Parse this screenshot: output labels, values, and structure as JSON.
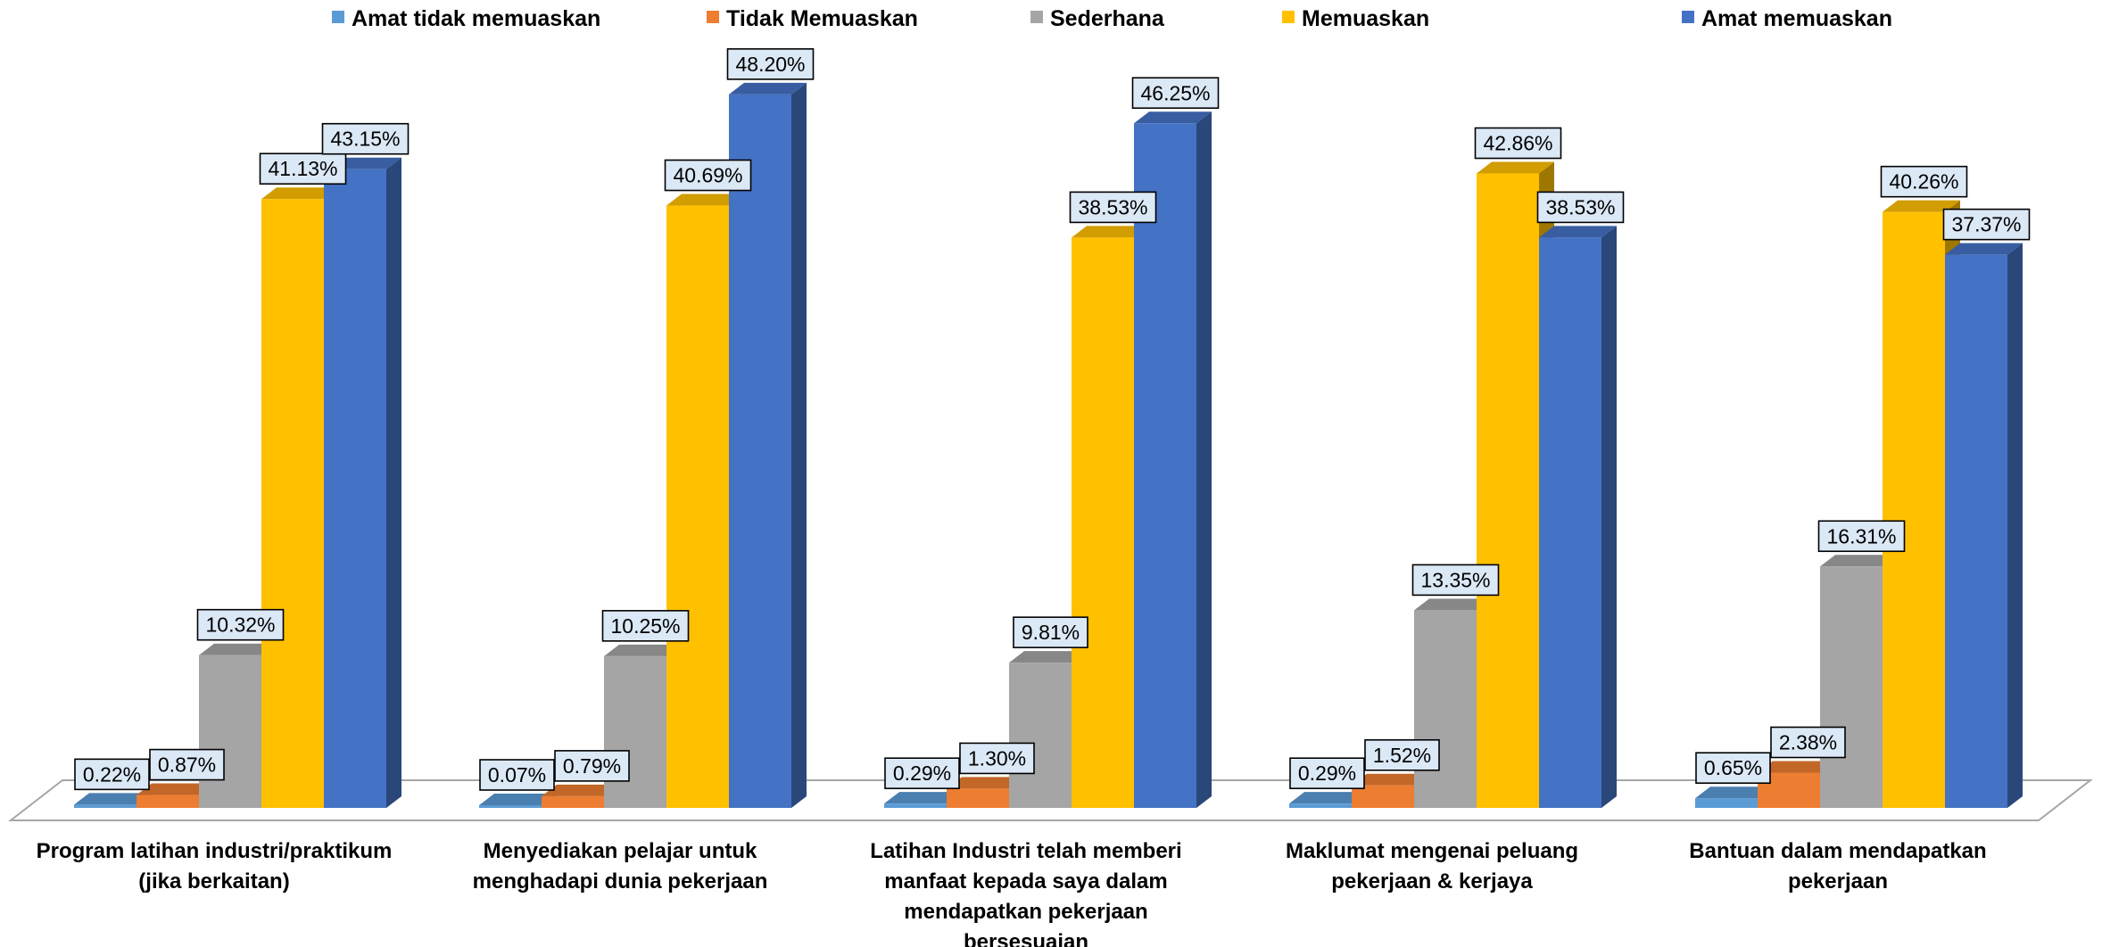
{
  "chart_data": {
    "type": "bar",
    "categories": [
      [
        "Program latihan industri/praktikum",
        "(jika berkaitan)"
      ],
      [
        "Menyediakan pelajar untuk",
        "menghadapi dunia pekerjaan"
      ],
      [
        "Latihan Industri telah memberi",
        "manfaat kepada saya dalam",
        "mendapatkan pekerjaan",
        "bersesuaian"
      ],
      [
        "Maklumat mengenai peluang",
        "pekerjaan & kerjaya"
      ],
      [
        "Bantuan dalam mendapatkan",
        "pekerjaan"
      ]
    ],
    "series": [
      {
        "name": "Amat tidak memuaskan",
        "color": "#5B9BD5",
        "values": [
          0.22,
          0.07,
          0.29,
          0.29,
          0.65
        ],
        "labels": [
          "0.22%",
          "0.07%",
          "0.29%",
          "0.29%",
          "0.65%"
        ]
      },
      {
        "name": "Tidak Memuaskan",
        "color": "#ED7D31",
        "values": [
          0.87,
          0.79,
          1.3,
          1.52,
          2.38
        ],
        "labels": [
          "0.87%",
          "0.79%",
          "1.30%",
          "1.52%",
          "2.38%"
        ]
      },
      {
        "name": "Sederhana",
        "color": "#A5A5A5",
        "values": [
          10.32,
          10.25,
          9.81,
          13.35,
          16.31
        ],
        "labels": [
          "10.32%",
          "10.25%",
          "9.81%",
          "13.35%",
          "16.31%"
        ]
      },
      {
        "name": "Memuaskan",
        "color": "#FFC000",
        "values": [
          41.13,
          40.69,
          38.53,
          42.86,
          40.26
        ],
        "labels": [
          "41.13%",
          "40.69%",
          "38.53%",
          "42.86%",
          "40.26%"
        ]
      },
      {
        "name": "Amat memuaskan",
        "color": "#4472C4",
        "values": [
          43.15,
          48.2,
          46.25,
          38.53,
          37.37
        ],
        "labels": [
          "43.15%",
          "48.20%",
          "46.25%",
          "38.53%",
          "37.37%"
        ]
      }
    ],
    "ylim": [
      0,
      50
    ],
    "legend_position": "top",
    "grid": false,
    "style": "3d-clustered-column"
  }
}
